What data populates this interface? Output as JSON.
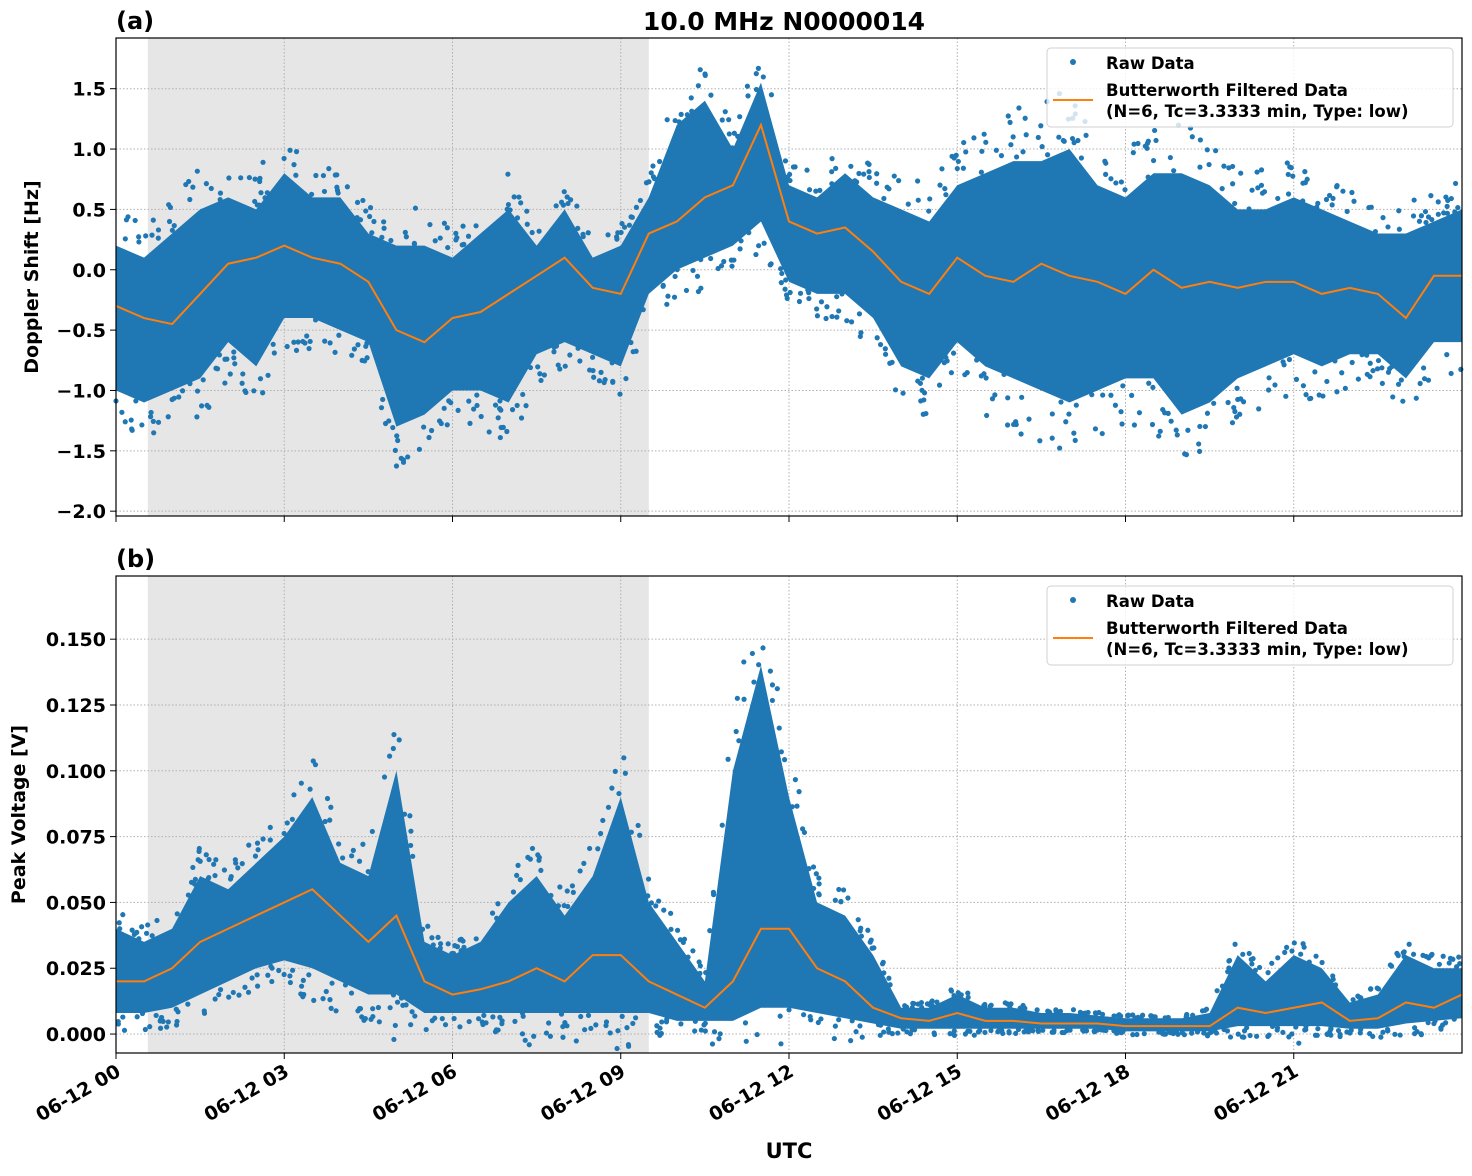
{
  "title": "10.0 MHz N0000014",
  "xlabel": "UTC",
  "colors": {
    "raw": "#1f77b4",
    "filtered": "#ff7f0e",
    "shade": "#e6e6e6"
  },
  "legend": {
    "raw": "Raw Data",
    "filtered_line1": "Butterworth Filtered Data",
    "filtered_line2": "(N=6, Tc=3.3333 min, Type: low)",
    "placement": "top-right"
  },
  "chart_data": [
    {
      "type": "scatter+line",
      "panel_label": "(a)",
      "ylabel": "Doppler Shift [Hz]",
      "ylim": [
        -2.04,
        1.92
      ],
      "xlim": [
        "06-12 00:00",
        "06-13 00:00"
      ],
      "grid": true,
      "shaded_span": [
        "06-12 00:34",
        "06-12 09:30"
      ],
      "y_ticks": [
        "−2.0",
        "−1.5",
        "−1.0",
        "−0.5",
        "0.0",
        "0.5",
        "1.0",
        "1.5"
      ],
      "y_tick_values": [
        -2.0,
        -1.5,
        -1.0,
        -0.5,
        0.0,
        0.5,
        1.0,
        1.5
      ],
      "filtered": [
        -0.3,
        -0.4,
        -0.45,
        -0.2,
        0.05,
        0.1,
        0.2,
        0.1,
        0.05,
        -0.1,
        -0.5,
        -0.6,
        -0.4,
        -0.35,
        -0.2,
        -0.05,
        0.1,
        -0.15,
        -0.2,
        0.3,
        0.4,
        0.6,
        0.7,
        1.2,
        0.4,
        0.3,
        0.35,
        0.15,
        -0.1,
        -0.2,
        0.1,
        -0.05,
        -0.1,
        0.05,
        -0.05,
        -0.1,
        -0.2,
        0.0,
        -0.15,
        -0.1,
        -0.15,
        -0.1,
        -0.1,
        -0.2,
        -0.15,
        -0.2,
        -0.4,
        -0.05,
        -0.05
      ],
      "raw_upper": [
        0.2,
        0.1,
        0.3,
        0.5,
        0.6,
        0.5,
        0.8,
        0.6,
        0.6,
        0.3,
        0.2,
        0.2,
        0.1,
        0.3,
        0.5,
        0.2,
        0.5,
        0.1,
        0.2,
        0.6,
        1.2,
        1.4,
        1.0,
        1.55,
        0.7,
        0.6,
        0.8,
        0.6,
        0.5,
        0.4,
        0.7,
        0.8,
        0.9,
        0.9,
        1.0,
        0.7,
        0.6,
        0.8,
        0.8,
        0.7,
        0.5,
        0.5,
        0.6,
        0.5,
        0.4,
        0.3,
        0.3,
        0.4,
        0.5
      ],
      "raw_lower": [
        -1.0,
        -1.1,
        -1.0,
        -0.9,
        -0.6,
        -0.8,
        -0.4,
        -0.4,
        -0.5,
        -0.6,
        -1.3,
        -1.2,
        -1.0,
        -1.0,
        -1.1,
        -0.7,
        -0.6,
        -0.7,
        -0.8,
        -0.2,
        0.0,
        0.1,
        0.2,
        0.4,
        -0.1,
        -0.2,
        -0.2,
        -0.4,
        -0.8,
        -0.9,
        -0.6,
        -0.8,
        -0.9,
        -1.0,
        -1.1,
        -1.0,
        -0.9,
        -0.9,
        -1.2,
        -1.1,
        -0.9,
        -0.8,
        -0.7,
        -0.8,
        -0.7,
        -0.7,
        -0.9,
        -0.6,
        -0.6
      ]
    },
    {
      "type": "scatter+line",
      "panel_label": "(b)",
      "ylabel": "Peak Voltage [V]",
      "ylim": [
        -0.0072,
        0.174
      ],
      "xlim": [
        "06-12 00:00",
        "06-13 00:00"
      ],
      "grid": true,
      "shaded_span": [
        "06-12 00:34",
        "06-12 09:30"
      ],
      "y_ticks": [
        "0.000",
        "0.025",
        "0.050",
        "0.075",
        "0.100",
        "0.125",
        "0.150"
      ],
      "y_tick_values": [
        0.0,
        0.025,
        0.05,
        0.075,
        0.1,
        0.125,
        0.15
      ],
      "filtered": [
        0.02,
        0.02,
        0.025,
        0.035,
        0.04,
        0.045,
        0.05,
        0.055,
        0.045,
        0.035,
        0.045,
        0.02,
        0.015,
        0.017,
        0.02,
        0.025,
        0.02,
        0.03,
        0.03,
        0.02,
        0.015,
        0.01,
        0.02,
        0.04,
        0.04,
        0.025,
        0.02,
        0.01,
        0.006,
        0.005,
        0.008,
        0.005,
        0.005,
        0.004,
        0.004,
        0.004,
        0.003,
        0.003,
        0.003,
        0.003,
        0.01,
        0.008,
        0.01,
        0.012,
        0.005,
        0.006,
        0.012,
        0.01,
        0.015
      ],
      "raw_upper": [
        0.04,
        0.035,
        0.04,
        0.06,
        0.055,
        0.065,
        0.075,
        0.09,
        0.065,
        0.06,
        0.1,
        0.035,
        0.03,
        0.035,
        0.05,
        0.06,
        0.045,
        0.06,
        0.09,
        0.05,
        0.035,
        0.02,
        0.1,
        0.14,
        0.09,
        0.05,
        0.045,
        0.03,
        0.01,
        0.01,
        0.015,
        0.01,
        0.01,
        0.008,
        0.008,
        0.007,
        0.006,
        0.006,
        0.006,
        0.008,
        0.03,
        0.02,
        0.03,
        0.025,
        0.012,
        0.015,
        0.03,
        0.025,
        0.025
      ],
      "raw_lower": [
        0.008,
        0.008,
        0.01,
        0.015,
        0.02,
        0.025,
        0.028,
        0.025,
        0.02,
        0.015,
        0.015,
        0.008,
        0.008,
        0.008,
        0.008,
        0.008,
        0.008,
        0.008,
        0.008,
        0.008,
        0.005,
        0.005,
        0.005,
        0.01,
        0.01,
        0.008,
        0.006,
        0.004,
        0.002,
        0.002,
        0.002,
        0.002,
        0.002,
        0.002,
        0.002,
        0.002,
        0.001,
        0.001,
        0.001,
        0.001,
        0.003,
        0.003,
        0.003,
        0.003,
        0.002,
        0.002,
        0.004,
        0.005,
        0.006
      ]
    }
  ],
  "x_ticks": [
    "06-12 00",
    "06-12 03",
    "06-12 06",
    "06-12 09",
    "06-12 12",
    "06-12 15",
    "06-12 18",
    "06-12 21"
  ],
  "x_tick_hours": [
    0,
    3,
    6,
    9,
    12,
    15,
    18,
    21
  ]
}
